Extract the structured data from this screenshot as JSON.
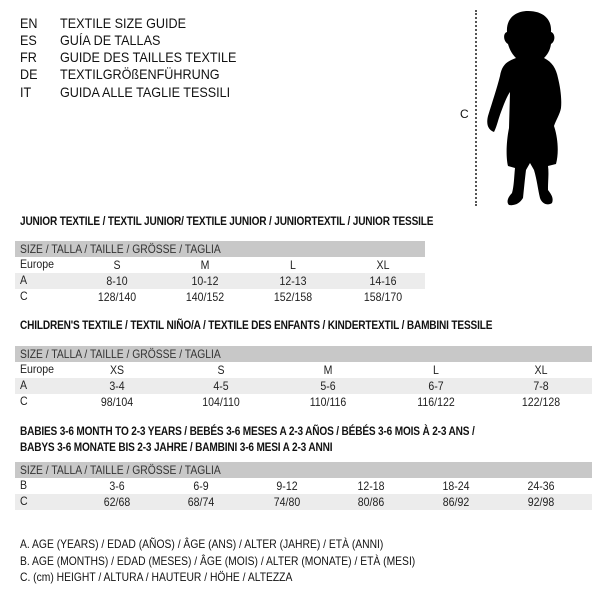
{
  "header": {
    "languages": [
      {
        "code": "EN",
        "title": "TEXTILE SIZE GUIDE"
      },
      {
        "code": "ES",
        "title": "GUÍA DE TALLAS"
      },
      {
        "code": "FR",
        "title": "GUIDE DES TAILLES TEXTILE"
      },
      {
        "code": "DE",
        "title": "TEXTILGRÖßENFÜHRUNG"
      },
      {
        "code": "IT",
        "title": "GUIDA ALLE TAGLIE TESSILI"
      }
    ]
  },
  "figure": {
    "measure_label": "C",
    "icon": "child-silhouette-icon"
  },
  "tables": [
    {
      "title": [
        "JUNIOR TEXTILE / TEXTIL JUNIOR/ TEXTILE JUNIOR / JUNIORTEXTIL / JUNIOR TESSILE"
      ],
      "header": "SIZE / TALLA / TAILLE / GRÖSSE / TAGLIA",
      "rows": [
        {
          "label": "Europe",
          "values": [
            "S",
            "M",
            "L",
            "XL"
          ]
        },
        {
          "label": "A",
          "values": [
            "8-10",
            "10-12",
            "12-13",
            "14-16"
          ]
        },
        {
          "label": "C",
          "values": [
            "128/140",
            "140/152",
            "152/158",
            "158/170"
          ]
        }
      ]
    },
    {
      "title": [
        "CHILDREN'S TEXTILE / TEXTIL NIÑO/A / TEXTILE DES ENFANTS / KINDERTEXTIL / BAMBINI TESSILE"
      ],
      "header": "SIZE / TALLA / TAILLE / GRÖSSE / TAGLIA",
      "rows": [
        {
          "label": "Europe",
          "values": [
            "XS",
            "S",
            "M",
            "L",
            "XL"
          ]
        },
        {
          "label": "A",
          "values": [
            "3-4",
            "4-5",
            "5-6",
            "6-7",
            "7-8"
          ]
        },
        {
          "label": "C",
          "values": [
            "98/104",
            "104/110",
            "110/116",
            "116/122",
            "122/128"
          ]
        }
      ]
    },
    {
      "title": [
        "BABIES 3-6 MONTH TO 2-3 YEARS / BEBÉS 3-6 MESES A 2-3 AÑOS / BÉBÉS 3-6 MOIS À 2-3 ANS /",
        "BABYS 3-6 MONATE BIS 2-3 JAHRE / BAMBINI 3-6 MESI A 2-3 ANNI"
      ],
      "header": "SIZE / TALLA / TAILLE / GRÖSSE / TAGLIA",
      "rows": [
        {
          "label": "B",
          "values": [
            "3-6",
            "6-9",
            "9-12",
            "12-18",
            "18-24",
            "24-36"
          ]
        },
        {
          "label": "C",
          "values": [
            "62/68",
            "68/74",
            "74/80",
            "80/86",
            "86/92",
            "92/98"
          ]
        }
      ]
    }
  ],
  "legend": [
    "A. AGE (YEARS) / EDAD (AÑOS) / ÂGE (ANS) / ALTER (JAHRE) / ETÀ (ANNI)",
    "B. AGE (MONTHS) / EDAD (MESES) / ÂGE (MOIS) / ALTER (MONATE) / ETÀ (MESI)",
    "C. (cm) HEIGHT / ALTURA / HAUTEUR / HÖHE / ALTEZZA"
  ]
}
